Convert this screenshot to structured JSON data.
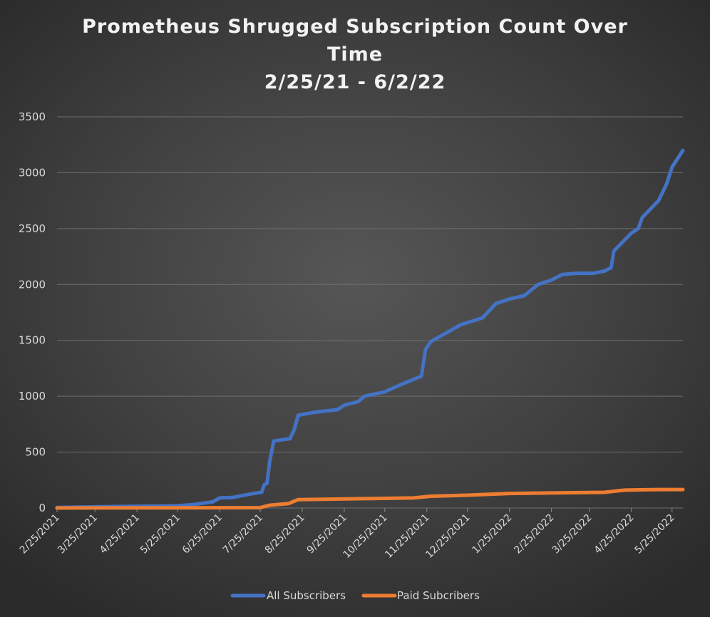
{
  "chart_data": {
    "type": "line",
    "title_lines": [
      "Prometheus Shrugged Subscription Count Over",
      "Time",
      "2/25/21 - 6/2/22"
    ],
    "xlabel": "",
    "ylabel": "",
    "ylim": [
      0,
      3500
    ],
    "yticks": [
      0,
      500,
      1000,
      1500,
      2000,
      2500,
      3000,
      3500
    ],
    "xlim": [
      "2021-02-25",
      "2022-06-02"
    ],
    "xticks": [
      {
        "date": "2021-02-25",
        "label": "2/25/2021"
      },
      {
        "date": "2021-03-25",
        "label": "3/25/2021"
      },
      {
        "date": "2021-04-25",
        "label": "4/25/2021"
      },
      {
        "date": "2021-05-25",
        "label": "5/25/2021"
      },
      {
        "date": "2021-06-25",
        "label": "6/25/2021"
      },
      {
        "date": "2021-07-25",
        "label": "7/25/2021"
      },
      {
        "date": "2021-08-25",
        "label": "8/25/2021"
      },
      {
        "date": "2021-09-25",
        "label": "9/25/2021"
      },
      {
        "date": "2021-10-25",
        "label": "10/25/2021"
      },
      {
        "date": "2021-11-25",
        "label": "11/25/2021"
      },
      {
        "date": "2021-12-25",
        "label": "12/25/2021"
      },
      {
        "date": "2022-01-25",
        "label": "1/25/2022"
      },
      {
        "date": "2022-02-25",
        "label": "2/25/2022"
      },
      {
        "date": "2022-03-25",
        "label": "3/25/2022"
      },
      {
        "date": "2022-04-25",
        "label": "4/25/2022"
      },
      {
        "date": "2022-05-25",
        "label": "5/25/2022"
      }
    ],
    "grid": true,
    "legend_position": "bottom",
    "series": [
      {
        "name": "All Subscribers",
        "color": "#4472c4",
        "points": [
          [
            "2021-02-25",
            5
          ],
          [
            "2021-03-25",
            10
          ],
          [
            "2021-04-25",
            15
          ],
          [
            "2021-05-25",
            20
          ],
          [
            "2021-06-05",
            30
          ],
          [
            "2021-06-20",
            55
          ],
          [
            "2021-06-25",
            90
          ],
          [
            "2021-07-05",
            95
          ],
          [
            "2021-07-20",
            130
          ],
          [
            "2021-07-26",
            140
          ],
          [
            "2021-07-28",
            210
          ],
          [
            "2021-07-30",
            220
          ],
          [
            "2021-08-01",
            420
          ],
          [
            "2021-08-04",
            600
          ],
          [
            "2021-08-10",
            610
          ],
          [
            "2021-08-16",
            620
          ],
          [
            "2021-08-19",
            700
          ],
          [
            "2021-08-22",
            830
          ],
          [
            "2021-09-05",
            860
          ],
          [
            "2021-09-20",
            880
          ],
          [
            "2021-09-25",
            920
          ],
          [
            "2021-10-05",
            950
          ],
          [
            "2021-10-10",
            1000
          ],
          [
            "2021-10-25",
            1040
          ],
          [
            "2021-11-05",
            1100
          ],
          [
            "2021-11-15",
            1150
          ],
          [
            "2021-11-21",
            1180
          ],
          [
            "2021-11-24",
            1420
          ],
          [
            "2021-11-28",
            1490
          ],
          [
            "2021-12-20",
            1640
          ],
          [
            "2022-01-05",
            1700
          ],
          [
            "2022-01-15",
            1830
          ],
          [
            "2022-01-25",
            1870
          ],
          [
            "2022-02-05",
            1900
          ],
          [
            "2022-02-15",
            2000
          ],
          [
            "2022-02-25",
            2040
          ],
          [
            "2022-03-05",
            2090
          ],
          [
            "2022-03-15",
            2100
          ],
          [
            "2022-03-28",
            2100
          ],
          [
            "2022-04-05",
            2120
          ],
          [
            "2022-04-10",
            2150
          ],
          [
            "2022-04-12",
            2300
          ],
          [
            "2022-04-25",
            2460
          ],
          [
            "2022-04-30",
            2500
          ],
          [
            "2022-05-03",
            2600
          ],
          [
            "2022-05-15",
            2750
          ],
          [
            "2022-05-21",
            2900
          ],
          [
            "2022-05-25",
            3050
          ],
          [
            "2022-06-02",
            3200
          ]
        ]
      },
      {
        "name": "Paid Subcribers",
        "color": "#ed7d31",
        "points": [
          [
            "2021-02-25",
            0
          ],
          [
            "2021-07-25",
            3
          ],
          [
            "2021-08-01",
            25
          ],
          [
            "2021-08-15",
            40
          ],
          [
            "2021-08-22",
            75
          ],
          [
            "2021-10-15",
            85
          ],
          [
            "2021-11-15",
            90
          ],
          [
            "2021-11-28",
            105
          ],
          [
            "2021-12-25",
            115
          ],
          [
            "2022-01-25",
            130
          ],
          [
            "2022-04-05",
            140
          ],
          [
            "2022-04-20",
            160
          ],
          [
            "2022-05-15",
            165
          ],
          [
            "2022-06-02",
            165
          ]
        ]
      }
    ]
  }
}
